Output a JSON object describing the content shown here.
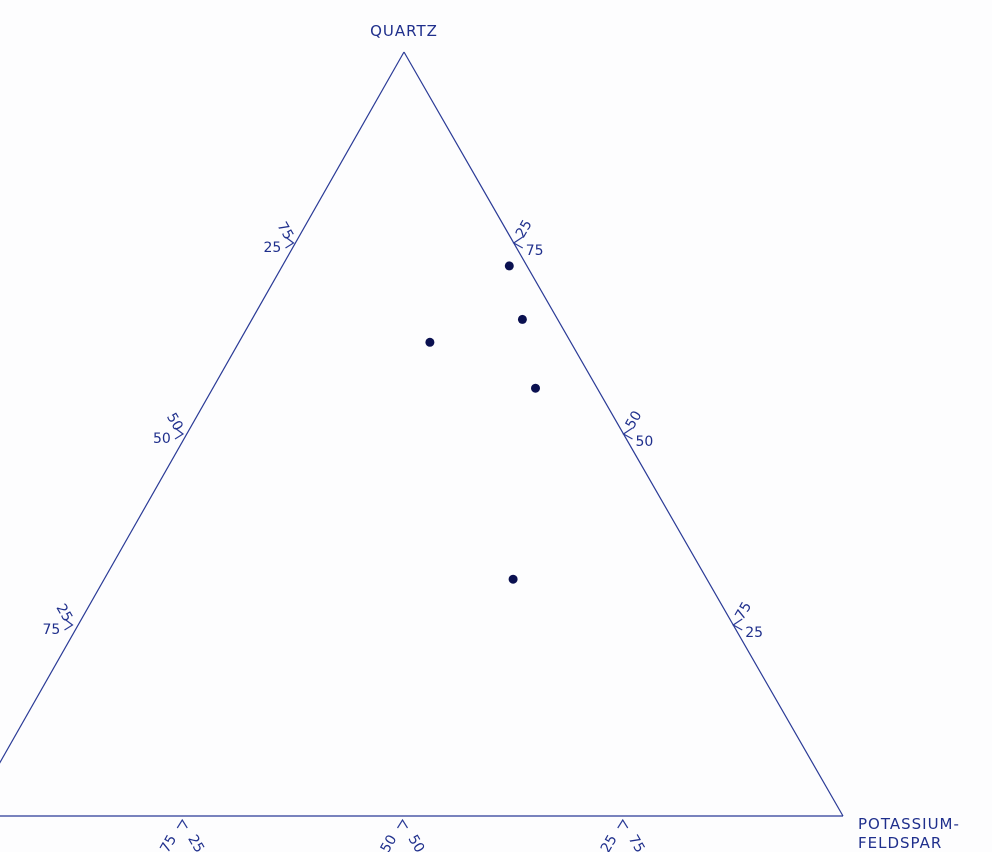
{
  "chart_data": {
    "type": "scatter",
    "subtype": "ternary",
    "title": "",
    "vertices": {
      "top": "QUARTZ",
      "right": [
        "POTASSIUM-",
        "FELDSPAR"
      ],
      "left": ""
    },
    "ticks": [
      25,
      50,
      75
    ],
    "points": [
      {
        "quartz": 72,
        "potassium_feldspar": 26
      },
      {
        "quartz": 65,
        "potassium_feldspar": 31
      },
      {
        "quartz": 62,
        "potassium_feldspar": 22
      },
      {
        "quartz": 56,
        "potassium_feldspar": 37
      },
      {
        "quartz": 31,
        "potassium_feldspar": 47
      }
    ],
    "colors": {
      "ink": "#1f2f8c",
      "points": "#0a1050",
      "background": "#fdfdfe"
    }
  }
}
